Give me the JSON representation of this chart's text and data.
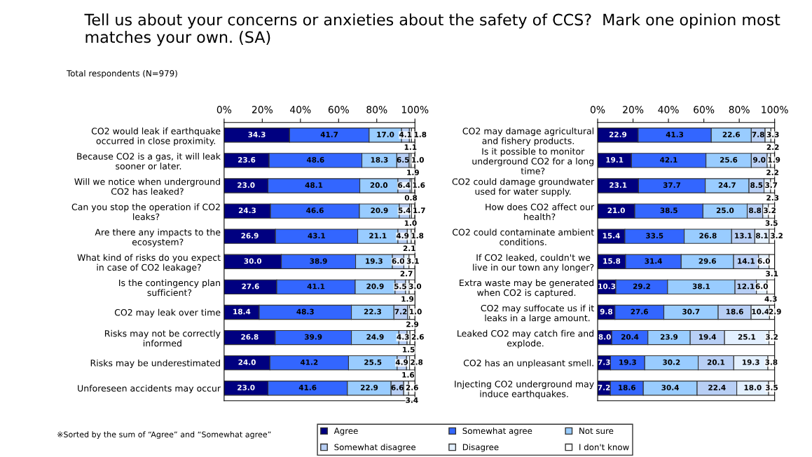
{
  "chart_data": [
    {
      "type": "bar",
      "orientation": "horizontal",
      "stacked": true,
      "title": "Tell us about your concerns or anxieties about the safety of CCS?  Mark one opinion most matches your own. (SA)",
      "subtitle": "Total respondents (N=979)",
      "annotations": [
        "※Sorted by the sum of “Agree” and “Somewhat agree”"
      ],
      "categories": [
        "CO2 would leak if earthquake occurred in close proximity.",
        "Because CO2 is a gas, it will leak sooner or later.",
        "Will we notice when underground CO2 has leaked?",
        "Can you stop the operation if CO2 leaks?",
        "Are there any impacts to the ecosystem?",
        "What kind of risks do you expect in case of CO2 leakage?",
        "Is the contingency plan sufficient?",
        "CO2 may leak over time",
        "Risks may not be correctly informed",
        "Risks may be underestimated",
        "Unforeseen accidents may occur"
      ],
      "xlim": [
        0,
        100
      ],
      "xticks": [
        {
          "value": 0,
          "label": "0%"
        },
        {
          "value": 20,
          "label": "20%"
        },
        {
          "value": 40,
          "label": "40%"
        },
        {
          "value": 60,
          "label": "60%"
        },
        {
          "value": 80,
          "label": "80%"
        },
        {
          "value": 100,
          "label": "100%"
        }
      ],
      "legend": "bottom",
      "grid": false,
      "series": [
        {
          "name": "Agree",
          "color": "#000080",
          "values": [
            34.3,
            23.6,
            23.0,
            24.3,
            26.9,
            30.0,
            27.6,
            18.4,
            26.8,
            24.0,
            23.0
          ],
          "value_labels": [
            "34.3",
            "23.6",
            "23.0",
            "24.3",
            "26.9",
            "30.0",
            "27.6",
            "18.4",
            "26.8",
            "24.0",
            "23.0"
          ]
        },
        {
          "name": "Somewhat agree",
          "color": "#3366ff",
          "values": [
            41.7,
            48.6,
            48.1,
            46.6,
            43.1,
            38.9,
            41.1,
            48.3,
            39.9,
            41.2,
            41.6
          ],
          "value_labels": [
            "41.7",
            "48.6",
            "48.1",
            "46.6",
            "43.1",
            "38.9",
            "41.1",
            "48.3",
            "39.9",
            "41.2",
            "41.6"
          ]
        },
        {
          "name": "Not sure",
          "color": "#99ccff",
          "values": [
            17.0,
            18.3,
            20.0,
            20.9,
            21.1,
            19.3,
            20.9,
            22.3,
            24.9,
            25.5,
            22.9
          ],
          "value_labels": [
            "17.0",
            "18.3",
            "20.0",
            "20.9",
            "21.1",
            "19.3",
            "20.9",
            "22.3",
            "24.9",
            "25.5",
            "22.9"
          ]
        },
        {
          "name": "Somewhat disagree",
          "color": "#b8cff5",
          "values": [
            4.1,
            6.5,
            6.4,
            5.4,
            4.9,
            6.0,
            5.5,
            7.2,
            4.3,
            4.9,
            6.6
          ],
          "value_labels": [
            "4.1",
            "6.5",
            "6.4",
            "5.4",
            "4.9",
            "6.0",
            "5.5",
            "7.2",
            "4.3",
            "4.9",
            "6.6"
          ]
        },
        {
          "name": "Disagree",
          "color": "#e3f0ff",
          "values": [
            1.1,
            1.0,
            0.8,
            1.0,
            2.1,
            2.7,
            1.9,
            1.0,
            1.5,
            1.6,
            2.6
          ],
          "value_labels": [
            "1.1",
            "1.0",
            "0.8",
            "1.0",
            "2.1",
            "2.7",
            "1.9",
            "1.0",
            "1.5",
            "1.6",
            "2.6"
          ]
        },
        {
          "name": "I don't know",
          "color": "#ffffff",
          "values": [
            1.8,
            1.9,
            1.6,
            1.7,
            1.8,
            3.1,
            3.0,
            2.9,
            2.6,
            2.8,
            3.4
          ],
          "value_labels": [
            "1.8",
            "1.9",
            "1.6",
            "1.7",
            "1.8",
            "3.1",
            "3.0",
            "2.9",
            "2.6",
            "2.8",
            "3.4"
          ]
        }
      ]
    },
    {
      "type": "bar",
      "orientation": "horizontal",
      "stacked": true,
      "categories": [
        "CO2 may damage agricultural and fishery products.",
        "Is it possible to monitor underground CO2 for a long time?",
        "CO2 could damage groundwater used for water supply.",
        "How does CO2 affect our health?",
        "CO2 could contaminate ambient conditions.",
        "If CO2 leaked, couldn't we live in our town any longer?",
        "Extra waste may be generated when CO2 is captured.",
        "CO2 may suffocate us if it leaks in a large amount.",
        "Leaked CO2 may catch fire and explode.",
        "CO2 has an unpleasant smell.",
        "Injecting CO2 underground may induce earthquakes."
      ],
      "xlim": [
        0,
        100
      ],
      "xticks": [
        {
          "value": 0,
          "label": "0%"
        },
        {
          "value": 20,
          "label": "20%"
        },
        {
          "value": 40,
          "label": "40%"
        },
        {
          "value": 60,
          "label": "60%"
        },
        {
          "value": 80,
          "label": "80%"
        },
        {
          "value": 100,
          "label": "100%"
        }
      ],
      "grid": false,
      "series": [
        {
          "color": "#000080",
          "values": [
            22.9,
            19.1,
            23.1,
            21.0,
            15.4,
            15.8,
            10.3,
            9.8,
            8.0,
            7.3,
            7.2
          ],
          "value_labels": [
            "22.9",
            "19.1",
            "23.1",
            "21.0",
            "15.4",
            "15.8",
            "10.3",
            "9.8",
            "8.0",
            "7.3",
            "7.2"
          ]
        },
        {
          "color": "#3366ff",
          "values": [
            41.3,
            42.1,
            37.7,
            38.5,
            33.5,
            31.4,
            29.2,
            27.6,
            20.4,
            19.3,
            18.6
          ],
          "value_labels": [
            "41.3",
            "42.1",
            "37.7",
            "38.5",
            "33.5",
            "31.4",
            "29.2",
            "27.6",
            "20.4",
            "19.3",
            "18.6"
          ]
        },
        {
          "color": "#99ccff",
          "values": [
            22.6,
            25.6,
            24.7,
            25.0,
            26.8,
            29.6,
            38.1,
            30.7,
            23.9,
            30.2,
            30.4
          ],
          "value_labels": [
            "22.6",
            "25.6",
            "24.7",
            "25.0",
            "26.8",
            "29.6",
            "38.1",
            "30.7",
            "23.9",
            "30.2",
            "30.4"
          ]
        },
        {
          "color": "#b8cff5",
          "values": [
            7.8,
            9.0,
            8.5,
            8.8,
            13.1,
            14.1,
            12.1,
            18.6,
            19.4,
            20.1,
            22.4
          ],
          "value_labels": [
            "7.8",
            "9.0",
            "8.5",
            "8.8",
            "13.1",
            "14.1",
            "12.1",
            "18.6",
            "19.4",
            "20.1",
            "22.4"
          ]
        },
        {
          "color": "#e3f0ff",
          "values": [
            3.3,
            1.9,
            3.7,
            3.2,
            8.1,
            6.0,
            6.0,
            10.4,
            25.1,
            19.3,
            18.0
          ],
          "value_labels": [
            "3.3",
            "1.9",
            "3.7",
            "3.2",
            "8.1",
            "6.0",
            "6.0",
            "10.4",
            "25.1",
            "19.3",
            "18.0"
          ]
        },
        {
          "color": "#ffffff",
          "values": [
            2.2,
            2.2,
            2.3,
            3.5,
            3.2,
            3.1,
            4.3,
            2.9,
            3.2,
            3.8,
            3.5
          ],
          "value_labels": [
            "2.2",
            "2.2",
            "2.3",
            "3.5",
            "3.2",
            "3.1",
            "4.3",
            "2.9",
            "3.2",
            "3.8",
            "3.5"
          ]
        }
      ]
    }
  ]
}
